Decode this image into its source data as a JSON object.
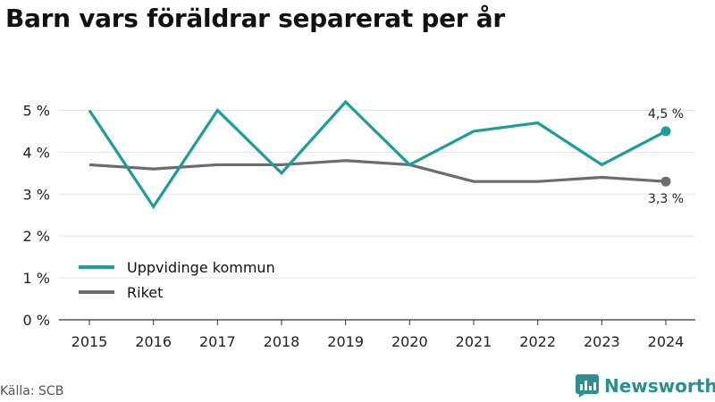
{
  "title": "Barn vars föräldrar separerat per år",
  "source": "Källa: SCB",
  "brand": "Newsworthy",
  "colors": {
    "kommun": "#1a9e96",
    "riket": "#6b6b72",
    "brand": "#2a8f8f"
  },
  "chart_data": {
    "type": "line",
    "x": [
      "2015",
      "2016",
      "2017",
      "2018",
      "2019",
      "2020",
      "2021",
      "2022",
      "2023",
      "2024"
    ],
    "ylim": [
      0,
      5.5
    ],
    "yticks": [
      0,
      1,
      2,
      3,
      4,
      5
    ],
    "ytick_labels": [
      "0 %",
      "1 %",
      "2 %",
      "3 %",
      "4 %",
      "5 %"
    ],
    "grid": true,
    "legend_position": "bottom-left",
    "series": [
      {
        "name": "Uppvidinge kommun",
        "color": "#1a9e96",
        "values": [
          5.0,
          2.7,
          5.0,
          3.5,
          5.2,
          3.7,
          4.5,
          4.7,
          3.7,
          4.5
        ],
        "end_label": "4,5 %"
      },
      {
        "name": "Riket",
        "color": "#6b6b72",
        "values": [
          3.7,
          3.6,
          3.7,
          3.7,
          3.8,
          3.7,
          3.3,
          3.3,
          3.4,
          3.3
        ],
        "end_label": "3,3 %"
      }
    ]
  }
}
